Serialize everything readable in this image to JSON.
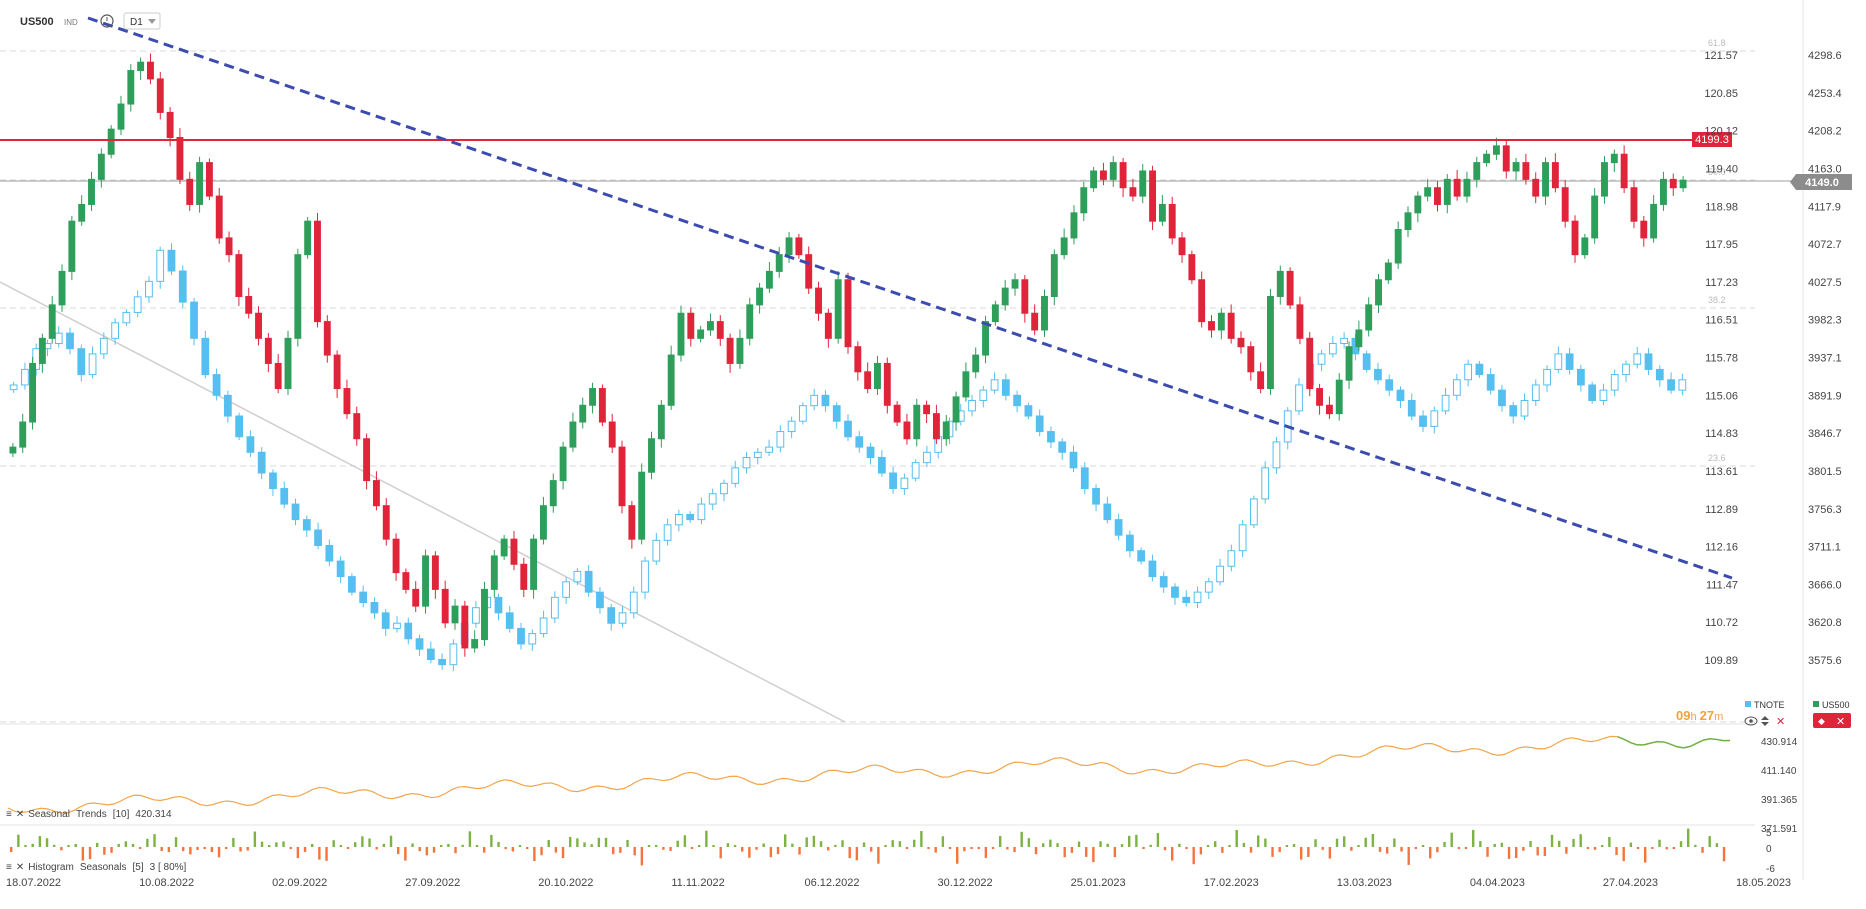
{
  "header": {
    "symbol": "US500",
    "exchange": "IND",
    "timeframe": "D1"
  },
  "legend": {
    "series1": "TNOTE",
    "series2": "US500"
  },
  "timer": {
    "hours": "09",
    "h": "h",
    "minutes": "27",
    "m": "m"
  },
  "price_tags": {
    "resistance": "4199.3",
    "last": "4149.0"
  },
  "fib_labels": [
    "61.8",
    "50.0",
    "38.2",
    "23.6"
  ],
  "indicators": {
    "seasonal": {
      "icon1": "≡",
      "icon2": "✕",
      "label": "Seasonal",
      "trend": "Trends",
      "period": "[10]",
      "value": "420.314"
    },
    "histogram": {
      "label": "Histogram",
      "name": "Seasonals",
      "params": "[5]",
      "extra": "3 [ 80%]"
    }
  },
  "colors": {
    "up": "#2e9e5b",
    "down": "#e0243a",
    "tnote": "#55bff0",
    "resistance": "#e0243a",
    "trendline": "#3b4bb0",
    "seasonal_line": "#f2a54a",
    "seasonal_tail": "#6fb13e",
    "hist_up": "#7cb342",
    "hist_down": "#f4743b"
  },
  "chart_data": {
    "type": "candlestick",
    "x_ticks": [
      "18.07.2022",
      "10.08.2022",
      "02.09.2022",
      "27.09.2022",
      "20.10.2022",
      "11.11.2022",
      "06.12.2022",
      "30.12.2022",
      "25.01.2023",
      "17.02.2023",
      "13.03.2023",
      "04.04.2023",
      "27.04.2023",
      "18.05.2023"
    ],
    "y_left_ticks": [
      "121.57",
      "120.85",
      "120.12",
      "119.40",
      "118.98",
      "117.95",
      "117.23",
      "116.51",
      "115.78",
      "115.06",
      "114.83",
      "113.61",
      "112.89",
      "112.16",
      "111.47",
      "110.72",
      "109.89"
    ],
    "y_right_ticks": [
      "4298.6",
      "4253.4",
      "4208.2",
      "4163.0",
      "4117.9",
      "4072.7",
      "4027.5",
      "3982.3",
      "3937.1",
      "3891.9",
      "3846.7",
      "3801.5",
      "3756.3",
      "3711.1",
      "3666.0",
      "3620.8",
      "3575.6"
    ],
    "resistance_level": 4199.3,
    "last_price": 4149.0,
    "us500_closes": [
      3830,
      3860,
      3930,
      3960,
      4000,
      4040,
      4100,
      4120,
      4150,
      4180,
      4210,
      4240,
      4280,
      4290,
      4270,
      4230,
      4200,
      4150,
      4120,
      4170,
      4130,
      4080,
      4060,
      4010,
      3990,
      3960,
      3930,
      3900,
      3960,
      4060,
      4100,
      3980,
      3940,
      3900,
      3870,
      3840,
      3790,
      3760,
      3720,
      3680,
      3660,
      3640,
      3700,
      3660,
      3620,
      3640,
      3590,
      3600,
      3660,
      3700,
      3720,
      3690,
      3660,
      3720,
      3760,
      3790,
      3830,
      3860,
      3880,
      3900,
      3860,
      3830,
      3760,
      3720,
      3800,
      3840,
      3880,
      3940,
      3990,
      3960,
      3970,
      3980,
      3960,
      3930,
      3960,
      4000,
      4020,
      4040,
      4060,
      4080,
      4060,
      4020,
      3990,
      3960,
      4030,
      3950,
      3920,
      3900,
      3930,
      3880,
      3860,
      3840,
      3880,
      3870,
      3840,
      3860,
      3890,
      3920,
      3940,
      3980,
      4000,
      4020,
      4030,
      3990,
      3970,
      4010,
      4060,
      4080,
      4110,
      4140,
      4160,
      4150,
      4170,
      4140,
      4130,
      4160,
      4100,
      4120,
      4080,
      4060,
      4030,
      3980,
      3970,
      3990,
      3960,
      3950,
      3920,
      3900,
      4010,
      4040,
      4000,
      3960,
      3900,
      3880,
      3870,
      3910,
      3950,
      3970,
      4000,
      4030,
      4050,
      4090,
      4110,
      4130,
      4140,
      4120,
      4150,
      4130,
      4150,
      4170,
      4180,
      4190,
      4160,
      4170,
      4150,
      4130,
      4170,
      4140,
      4100,
      4060,
      4080,
      4130,
      4170,
      4180,
      4140,
      4100,
      4080,
      4120,
      4150,
      4140,
      4149
    ],
    "tnote_closes": [
      115.2,
      115.5,
      115.9,
      116.0,
      116.2,
      115.9,
      115.4,
      115.8,
      116.1,
      116.4,
      116.6,
      116.9,
      117.2,
      117.8,
      117.4,
      116.8,
      116.1,
      115.4,
      115.0,
      114.6,
      114.2,
      113.9,
      113.5,
      113.2,
      112.9,
      112.6,
      112.4,
      112.1,
      111.8,
      111.5,
      111.2,
      111.0,
      110.8,
      110.5,
      110.6,
      110.3,
      110.1,
      109.9,
      109.8,
      110.2,
      110.6,
      110.9,
      111.1,
      110.8,
      110.5,
      110.2,
      110.4,
      110.7,
      111.1,
      111.4,
      111.6,
      111.2,
      110.9,
      110.6,
      110.8,
      111.2,
      111.8,
      112.2,
      112.5,
      112.7,
      112.6,
      112.9,
      113.1,
      113.3,
      113.6,
      113.8,
      113.9,
      114.0,
      114.3,
      114.5,
      114.8,
      115.0,
      114.8,
      114.5,
      114.2,
      114.0,
      113.8,
      113.5,
      113.2,
      113.4,
      113.7,
      113.9,
      114.2,
      114.5,
      114.7,
      114.9,
      115.1,
      115.3,
      115.0,
      114.8,
      114.6,
      114.3,
      114.1,
      113.9,
      113.6,
      113.2,
      112.9,
      112.6,
      112.3,
      112.0,
      111.8,
      111.5,
      111.3,
      111.1,
      111.0,
      111.2,
      111.4,
      111.7,
      112.0,
      112.5,
      113.0,
      113.6,
      114.1,
      114.7,
      115.2,
      115.6,
      115.8,
      116.0,
      116.1,
      115.8,
      115.5,
      115.3,
      115.1,
      114.9,
      114.6,
      114.4,
      114.7,
      115.0,
      115.3,
      115.6,
      115.4,
      115.1,
      114.8,
      114.6,
      114.9,
      115.2,
      115.5,
      115.8,
      115.5,
      115.2,
      114.9,
      115.1,
      115.4,
      115.6,
      115.8,
      115.5,
      115.3,
      115.1,
      115.3
    ],
    "seasonal_trend": {
      "axis": [
        "430.914",
        "411.140",
        "391.365",
        "371.591"
      ]
    },
    "histogram_axis": [
      "5",
      "0",
      "-6"
    ]
  }
}
